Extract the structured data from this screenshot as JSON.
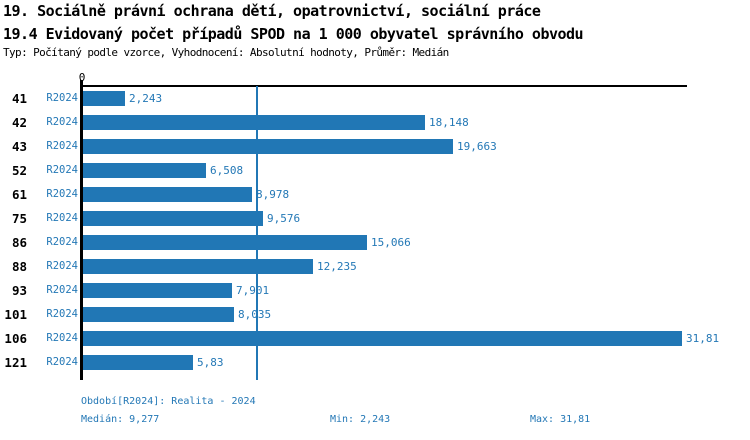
{
  "header": {
    "title_line1": "19. Sociálně právní ochrana dětí, opatrovnictví, sociální práce",
    "title_line2": "19.4 Evidovaný počet případů SPOD na 1 000 obyvatel správního obvodu",
    "subtitle": "Typ: Počítaný podle vzorce, Vyhodnocení: Absolutní hodnoty, Průměr: Medián"
  },
  "chart_data": {
    "type": "bar",
    "orientation": "horizontal",
    "title": "19.4 Evidovaný počet případů SPOD na 1 000 obyvatel správního obvodu",
    "categories": [
      "41",
      "42",
      "43",
      "52",
      "61",
      "75",
      "86",
      "88",
      "93",
      "101",
      "106",
      "121"
    ],
    "series_label": "R2024",
    "values": [
      2.243,
      18.148,
      19.663,
      6.508,
      8.978,
      9.576,
      15.066,
      12.235,
      7.901,
      8.035,
      31.81,
      5.83
    ],
    "value_labels": [
      "2,243",
      "18,148",
      "19,663",
      "6,508",
      "8,978",
      "9,576",
      "15,066",
      "12,235",
      "7,901",
      "8,035",
      "31,81",
      "5,83"
    ],
    "median": 9.277,
    "xlim": [
      0,
      32.2
    ],
    "axis_zero_label": "0",
    "grid": "off",
    "legend": "none",
    "bar_color": "#2177b5",
    "accent_text_color": "#2478b6",
    "median_line_color": "#2177b5"
  },
  "footer": {
    "period": "Období[R2024]: Realita - 2024",
    "median": "Medián: 9,277",
    "min": "Min: 2,243",
    "max": "Max: 31,81"
  }
}
